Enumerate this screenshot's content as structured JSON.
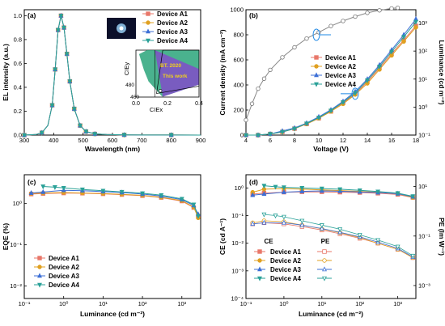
{
  "colors": {
    "A1": "#e8776a",
    "A2": "#e0a020",
    "A3": "#3c6fd6",
    "A4": "#2aa198",
    "axis": "#000000",
    "inset_dark": "#0b0f2a",
    "inset_glow": "#9fd8ff"
  },
  "chart_data": [
    {
      "panel": "(a)",
      "type": "line",
      "xlabel": "Wavelength (nm)",
      "ylabel": "EL intensity (a.u.)",
      "xlim": [
        300,
        900
      ],
      "ylim": [
        0,
        1.05
      ],
      "xticks": [
        "300",
        "400",
        "500",
        "600",
        "700",
        "800",
        "900"
      ],
      "yticks": [
        "0.0",
        "0.2",
        "0.4",
        "0.6",
        "0.8",
        "1.0"
      ],
      "series": [
        {
          "name": "Device A1",
          "x": [
            300,
            340,
            360,
            380,
            395,
            405,
            415,
            425,
            435,
            445,
            455,
            470,
            490,
            510,
            540,
            580,
            640,
            700,
            800,
            900
          ],
          "y": [
            0,
            0.005,
            0.02,
            0.08,
            0.25,
            0.55,
            0.88,
            1.0,
            0.9,
            0.68,
            0.45,
            0.22,
            0.08,
            0.03,
            0.01,
            0.005,
            0.002,
            0.001,
            0.001,
            0
          ]
        },
        {
          "name": "Device A2",
          "x": [
            300,
            340,
            360,
            380,
            395,
            405,
            415,
            425,
            435,
            445,
            455,
            470,
            490,
            510,
            540,
            580,
            640,
            700,
            800,
            900
          ],
          "y": [
            0,
            0.005,
            0.02,
            0.08,
            0.25,
            0.55,
            0.88,
            1.0,
            0.9,
            0.68,
            0.45,
            0.22,
            0.08,
            0.03,
            0.01,
            0.005,
            0.002,
            0.001,
            0.001,
            0
          ]
        },
        {
          "name": "Device A3",
          "x": [
            300,
            340,
            360,
            380,
            395,
            405,
            415,
            425,
            435,
            445,
            455,
            470,
            490,
            510,
            540,
            580,
            640,
            700,
            800,
            900
          ],
          "y": [
            0,
            0.005,
            0.02,
            0.08,
            0.25,
            0.55,
            0.88,
            1.0,
            0.9,
            0.68,
            0.45,
            0.22,
            0.08,
            0.03,
            0.01,
            0.005,
            0.002,
            0.001,
            0.001,
            0
          ]
        },
        {
          "name": "Device A4",
          "x": [
            300,
            340,
            360,
            380,
            395,
            405,
            415,
            425,
            435,
            445,
            455,
            470,
            490,
            510,
            540,
            580,
            640,
            700,
            800,
            900
          ],
          "y": [
            0,
            0.005,
            0.02,
            0.08,
            0.25,
            0.55,
            0.88,
            1.0,
            0.9,
            0.68,
            0.45,
            0.22,
            0.08,
            0.03,
            0.01,
            0.005,
            0.002,
            0.001,
            0.001,
            0
          ]
        }
      ],
      "inset": {
        "type": "scatter",
        "xlabel": "CIEx",
        "ylabel": "CIEy",
        "xlim": [
          0,
          0.4
        ],
        "ylim": [
          0,
          0.6
        ],
        "xticks": [
          "0.0",
          "0.2",
          "0.4"
        ],
        "labels": [
          "BT. 2020",
          "This work",
          "480",
          "460"
        ],
        "points": [
          {
            "x": 0.155,
            "y": 0.08
          }
        ]
      }
    },
    {
      "panel": "(b)",
      "type": "line",
      "xlabel": "Voltage (V)",
      "ylabel": "Current density (mA cm⁻²)",
      "ylabel_right": "Luminance (cd m⁻²)",
      "xlim": [
        4,
        18
      ],
      "ylim": [
        0,
        1000
      ],
      "ylim_right_log": [
        0.1,
        3000
      ],
      "xticks": [
        "4",
        "6",
        "8",
        "10",
        "12",
        "14",
        "16",
        "18"
      ],
      "yticks": [
        "0",
        "200",
        "400",
        "600",
        "800",
        "1000"
      ],
      "yticks_right": [
        "10⁻¹",
        "10⁰",
        "10¹",
        "10²",
        "10³"
      ],
      "current_density": {
        "x": [
          4,
          4.5,
          5,
          5.5,
          6,
          7,
          8,
          9,
          10,
          11,
          12,
          13,
          14,
          15,
          16,
          16.5
        ],
        "y": [
          120,
          250,
          370,
          450,
          520,
          620,
          700,
          770,
          820,
          870,
          910,
          945,
          975,
          995,
          1010,
          1015
        ]
      },
      "series": [
        {
          "name": "Device A1",
          "x": [
            4,
            5,
            6,
            7,
            8,
            9,
            10,
            11,
            12,
            13,
            14,
            15,
            16,
            17,
            18
          ],
          "y": [
            0.1,
            0.1,
            0.11,
            0.13,
            0.17,
            0.25,
            0.4,
            0.7,
            1.4,
            3,
            8,
            25,
            80,
            250,
            800
          ]
        },
        {
          "name": "Device A2",
          "x": [
            4,
            5,
            6,
            7,
            8,
            9,
            10,
            11,
            12,
            13,
            14,
            15,
            16,
            17,
            18
          ],
          "y": [
            0.1,
            0.1,
            0.11,
            0.13,
            0.17,
            0.25,
            0.4,
            0.7,
            1.3,
            2.8,
            7,
            22,
            70,
            220,
            700
          ]
        },
        {
          "name": "Device A3",
          "x": [
            4,
            5,
            6,
            7,
            8,
            9,
            10,
            11,
            12,
            13,
            14,
            15,
            16,
            17,
            18
          ],
          "y": [
            0.1,
            0.1,
            0.11,
            0.14,
            0.18,
            0.27,
            0.45,
            0.8,
            1.6,
            3.6,
            10,
            32,
            110,
            380,
            1400
          ]
        },
        {
          "name": "Device A4",
          "x": [
            4,
            5,
            6,
            7,
            8,
            9,
            10,
            11,
            12,
            13,
            14,
            15,
            16,
            17,
            18
          ],
          "y": [
            0.1,
            0.1,
            0.11,
            0.13,
            0.17,
            0.26,
            0.42,
            0.75,
            1.5,
            3.2,
            9,
            28,
            95,
            320,
            1100
          ]
        }
      ]
    },
    {
      "panel": "(c)",
      "type": "line",
      "xlabel": "Luminance (cd m⁻²)",
      "ylabel": "EQE (%)",
      "xscale": "log",
      "yscale": "log",
      "xlim": [
        0.1,
        3000
      ],
      "ylim": [
        0.005,
        5
      ],
      "xticks": [
        "10⁻¹",
        "10⁰",
        "10¹",
        "10²",
        "10³"
      ],
      "yticks": [
        "10⁻²",
        "10⁻¹",
        "10⁰"
      ],
      "series": [
        {
          "name": "Device A1",
          "x": [
            0.15,
            0.3,
            1,
            3,
            10,
            30,
            100,
            300,
            1000,
            2000,
            2600
          ],
          "y": [
            1.7,
            1.75,
            1.8,
            1.78,
            1.72,
            1.65,
            1.55,
            1.4,
            1.15,
            0.8,
            0.5
          ]
        },
        {
          "name": "Device A2",
          "x": [
            0.15,
            0.3,
            1,
            3,
            10,
            30,
            100,
            300,
            1000,
            2000,
            2600
          ],
          "y": [
            1.75,
            1.8,
            1.85,
            1.8,
            1.75,
            1.68,
            1.58,
            1.42,
            1.18,
            0.82,
            0.45
          ]
        },
        {
          "name": "Device A3",
          "x": [
            0.15,
            0.3,
            1,
            3,
            10,
            30,
            100,
            300,
            1000,
            2000,
            2600
          ],
          "y": [
            1.8,
            1.9,
            2.1,
            2.05,
            1.95,
            1.85,
            1.7,
            1.52,
            1.25,
            0.9,
            0.55
          ]
        },
        {
          "name": "Device A4",
          "x": [
            0.3,
            0.6,
            1,
            3,
            10,
            30,
            100,
            300,
            1000,
            2000,
            2600
          ],
          "y": [
            2.6,
            2.5,
            2.4,
            2.2,
            2.05,
            1.92,
            1.78,
            1.6,
            1.3,
            0.95,
            0.5
          ]
        }
      ]
    },
    {
      "panel": "(d)",
      "type": "line",
      "xlabel": "Luminance (cd m⁻²)",
      "ylabel": "CE (cd A⁻¹)",
      "ylabel_right": "PE (lm W⁻¹)",
      "xscale": "log",
      "yscale": "log",
      "xlim": [
        0.1,
        3000
      ],
      "ylim": [
        0.0001,
        3
      ],
      "ylim_right": [
        0.0003,
        30
      ],
      "xticks": [
        "10⁻¹",
        "10⁰",
        "10¹",
        "10²",
        "10³"
      ],
      "yticks": [
        "10⁻⁴",
        "10⁻³",
        "10⁻²",
        "10⁻¹",
        "10⁰"
      ],
      "yticks_right": [
        "10⁻³",
        "10⁻¹",
        "10¹"
      ],
      "legend_headers": [
        "CE",
        "PE"
      ],
      "series_ce": [
        {
          "name": "Device A1",
          "x": [
            0.15,
            0.3,
            1,
            3,
            10,
            30,
            100,
            300,
            1000,
            2500
          ],
          "y": [
            0.6,
            0.65,
            0.7,
            0.72,
            0.72,
            0.7,
            0.68,
            0.64,
            0.58,
            0.45
          ]
        },
        {
          "name": "Device A2",
          "x": [
            0.15,
            0.3,
            1,
            3,
            10,
            30,
            100,
            300,
            1000,
            2500
          ],
          "y": [
            0.7,
            0.9,
            0.95,
            0.9,
            0.85,
            0.8,
            0.75,
            0.7,
            0.62,
            0.45
          ]
        },
        {
          "name": "Device A3",
          "x": [
            0.15,
            0.3,
            1,
            3,
            10,
            30,
            100,
            300,
            1000,
            2500
          ],
          "y": [
            0.55,
            0.6,
            0.7,
            0.75,
            0.78,
            0.76,
            0.72,
            0.68,
            0.62,
            0.48
          ]
        },
        {
          "name": "Device A4",
          "x": [
            0.3,
            0.6,
            1,
            3,
            10,
            30,
            100,
            300,
            1000,
            2500
          ],
          "y": [
            1.2,
            1.1,
            1.05,
            1.0,
            0.95,
            0.9,
            0.82,
            0.74,
            0.65,
            0.5
          ]
        }
      ],
      "series_pe": [
        {
          "name": "Device A1",
          "x": [
            0.15,
            0.3,
            1,
            3,
            10,
            30,
            100,
            300,
            1000,
            2500
          ],
          "y": [
            0.5,
            0.55,
            0.5,
            0.4,
            0.3,
            0.22,
            0.15,
            0.1,
            0.06,
            0.03
          ]
        },
        {
          "name": "Device A2",
          "x": [
            0.15,
            0.3,
            1,
            3,
            10,
            30,
            100,
            300,
            1000,
            2500
          ],
          "y": [
            0.55,
            0.65,
            0.6,
            0.45,
            0.33,
            0.24,
            0.16,
            0.1,
            0.06,
            0.03
          ]
        },
        {
          "name": "Device A3",
          "x": [
            0.15,
            0.3,
            1,
            3,
            10,
            30,
            100,
            300,
            1000,
            2500
          ],
          "y": [
            0.5,
            0.55,
            0.55,
            0.45,
            0.34,
            0.25,
            0.17,
            0.11,
            0.065,
            0.032
          ]
        },
        {
          "name": "Device A4",
          "x": [
            0.3,
            0.6,
            1,
            3,
            10,
            30,
            100,
            300,
            1000,
            2500
          ],
          "y": [
            1.1,
            1.0,
            0.9,
            0.65,
            0.45,
            0.32,
            0.2,
            0.13,
            0.075,
            0.035
          ]
        }
      ]
    }
  ]
}
